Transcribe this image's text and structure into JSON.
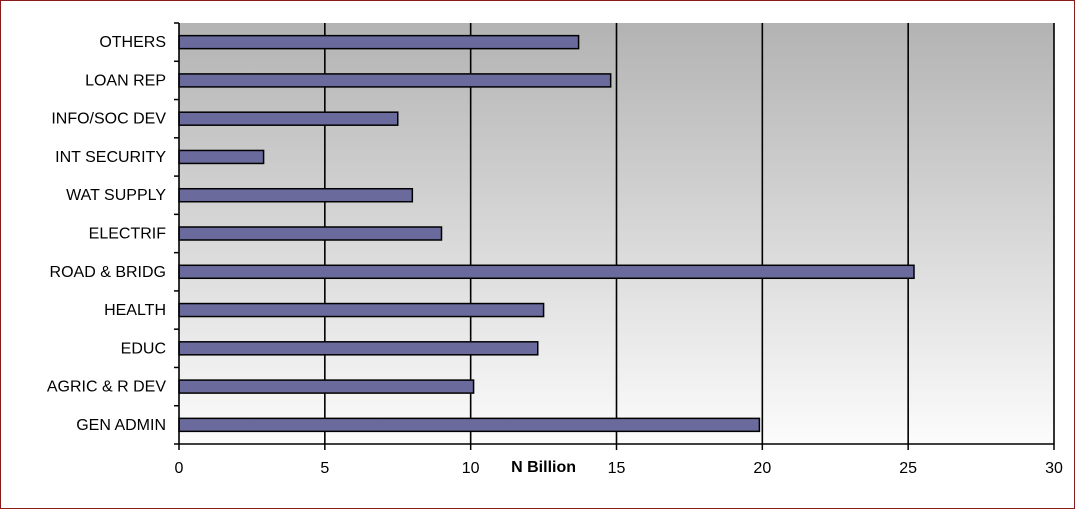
{
  "chart_data": {
    "type": "bar",
    "orientation": "horizontal",
    "title": "",
    "xlabel": "N Billion",
    "ylabel": "",
    "xlim": [
      0,
      30
    ],
    "xticks": [
      0,
      5,
      10,
      15,
      20,
      25,
      30
    ],
    "grid": "vertical major gridlines",
    "legend": "none",
    "categories": [
      "GEN ADMIN",
      "AGRIC & R DEV",
      "EDUC",
      "HEALTH",
      "ROAD & BRIDG",
      "ELECTRIF",
      "WAT SUPPLY",
      "INT SECURITY",
      "INFO/SOC DEV",
      "LOAN REP",
      "OTHERS"
    ],
    "series": [
      {
        "values": [
          19.9,
          10.1,
          12.3,
          12.5,
          25.2,
          9.0,
          8.0,
          2.9,
          7.5,
          14.8,
          13.7
        ]
      }
    ],
    "colors": {
      "bar_fill": "#6a6a9c",
      "bar_stroke": "#000000",
      "plot_gradient_top": "#b3b3b3",
      "plot_gradient_bottom": "#fcfcfc",
      "frame_border": "#8b1a1a"
    }
  }
}
